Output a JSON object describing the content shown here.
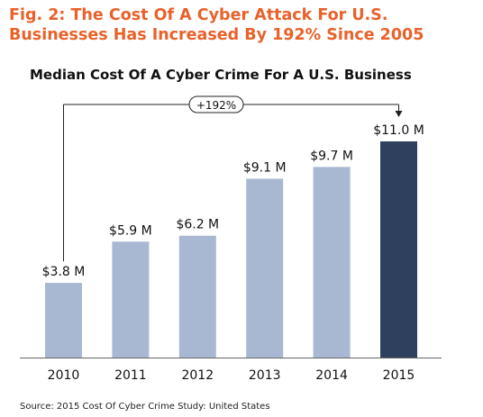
{
  "figure": {
    "title_line1": "Fig. 2: The Cost Of A Cyber Attack For U.S.",
    "title_line2": "Businesses Has Increased By 192% Since 2005",
    "source": "Source: 2015 Cost Of Cyber Crime Study: United States"
  },
  "colors": {
    "title": "#e8622b",
    "bar": "#a8b8d2",
    "bar_highlight": "#2e405e",
    "axis": "#666666"
  },
  "chart_data": {
    "type": "bar",
    "title": "Median Cost Of A Cyber Crime For A U.S. Business",
    "categories": [
      "2010",
      "2011",
      "2012",
      "2013",
      "2014",
      "2015"
    ],
    "values": [
      3.8,
      5.9,
      6.2,
      9.1,
      9.7,
      11.0
    ],
    "data_labels": [
      "$3.8 M",
      "$5.9 M",
      "$6.2 M",
      "$9.1 M",
      "$9.7 M",
      "$11.0 M"
    ],
    "unit": "M",
    "highlight_index": 5,
    "ylim": [
      0,
      11.0
    ],
    "grid": false,
    "annotation": {
      "text": "+192%",
      "from_index": 0,
      "to_index": 5
    }
  }
}
